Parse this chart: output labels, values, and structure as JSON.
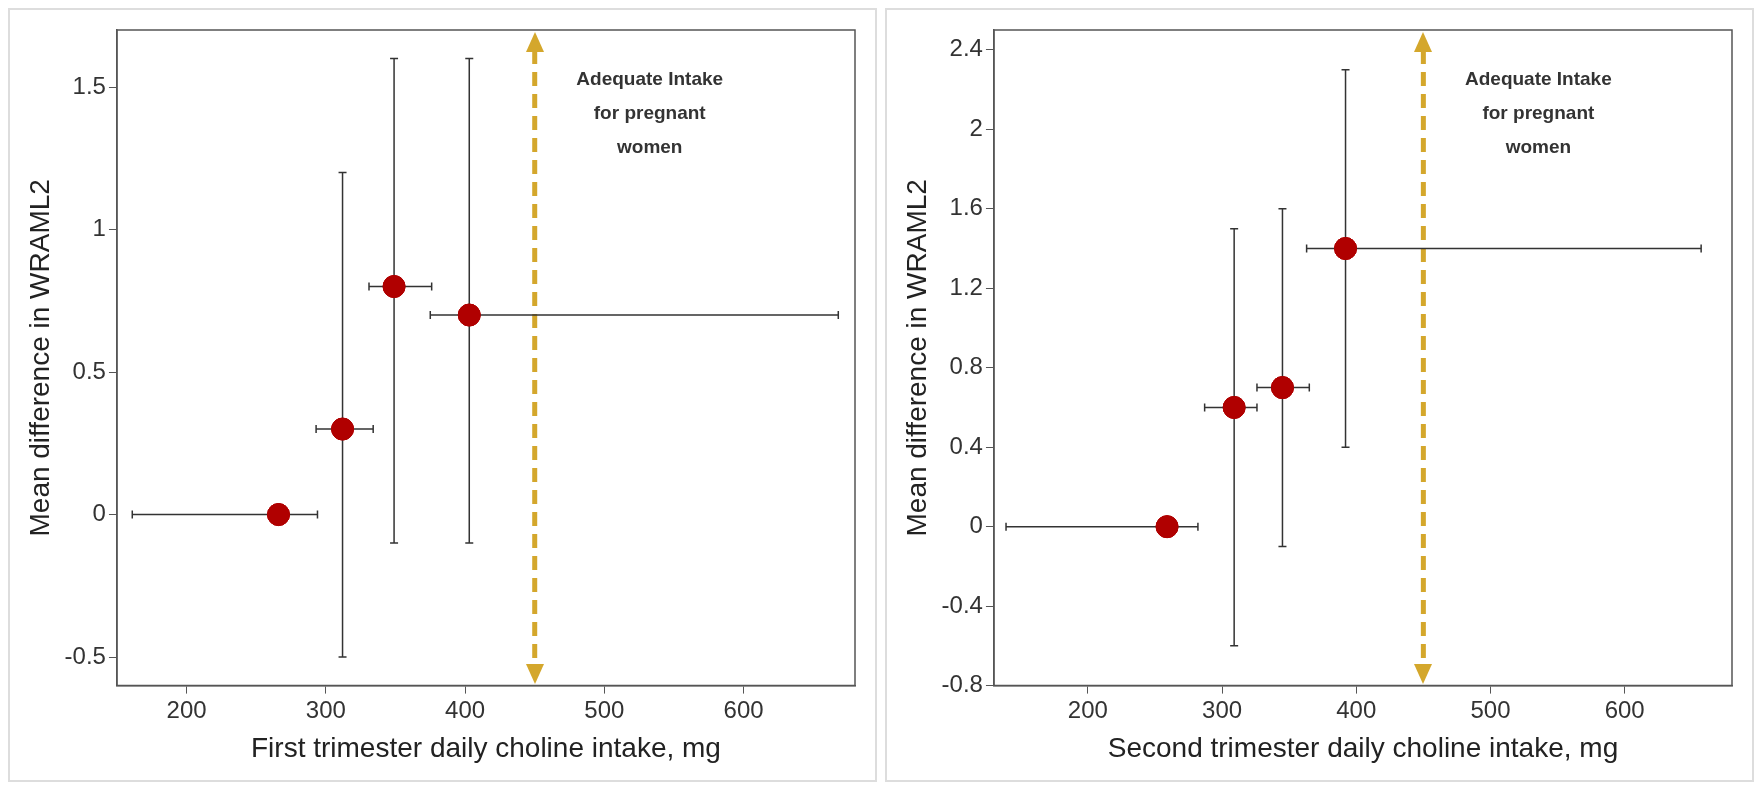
{
  "chart_data": [
    {
      "type": "scatter",
      "xlabel": "First trimester daily choline intake, mg",
      "ylabel": "Mean difference in WRAML2",
      "marker": "circle",
      "grid": false,
      "series": [
        {
          "color": "#b00000",
          "x": [
            266,
            312,
            349,
            403
          ],
          "values": [
            0,
            0.3,
            0.8,
            0.7
          ],
          "xerrors": [
            [
              161,
              294
            ],
            [
              293,
              334
            ],
            [
              331,
              376
            ],
            [
              375,
              668
            ]
          ],
          "errors": [
            null,
            [
              -0.5,
              1.2
            ],
            [
              -0.1,
              1.6
            ],
            [
              -0.1,
              1.6
            ]
          ]
        }
      ],
      "xlim": [
        150,
        680
      ],
      "ylim": [
        -0.6,
        1.7
      ],
      "xticks": [
        200,
        300,
        400,
        500,
        600
      ],
      "yticks": [
        -0.5,
        0,
        0.5,
        1,
        1.5
      ],
      "ref_lines": [
        {
          "axis": "x",
          "value": 450,
          "label": "Adequate Intake for pregnant women",
          "color": "#d4a72c",
          "line_style": "dashed"
        }
      ]
    },
    {
      "type": "scatter",
      "xlabel": "Second trimester daily choline intake, mg",
      "ylabel": "Mean difference in WRAML2",
      "marker": "circle",
      "grid": false,
      "series": [
        {
          "color": "#b00000",
          "x": [
            259,
            309,
            345,
            392
          ],
          "values": [
            0,
            0.6,
            0.7,
            1.4
          ],
          "xerrors": [
            [
              139,
              282
            ],
            [
              287,
              326
            ],
            [
              326,
              365
            ],
            [
              363,
              657
            ]
          ],
          "errors": [
            null,
            [
              -0.6,
              1.5
            ],
            [
              -0.1,
              1.6
            ],
            [
              0.4,
              2.3
            ]
          ]
        }
      ],
      "xlim": [
        130,
        680
      ],
      "ylim": [
        -0.8,
        2.5
      ],
      "xticks": [
        200,
        300,
        400,
        500,
        600
      ],
      "yticks": [
        -0.8,
        -0.4,
        0,
        0.4,
        0.8,
        1.2,
        1.6,
        2,
        2.4
      ],
      "ref_lines": [
        {
          "axis": "x",
          "value": 450,
          "label": "Adequate Intake for pregnant women",
          "color": "#d4a72c",
          "line_style": "dashed"
        }
      ]
    }
  ]
}
